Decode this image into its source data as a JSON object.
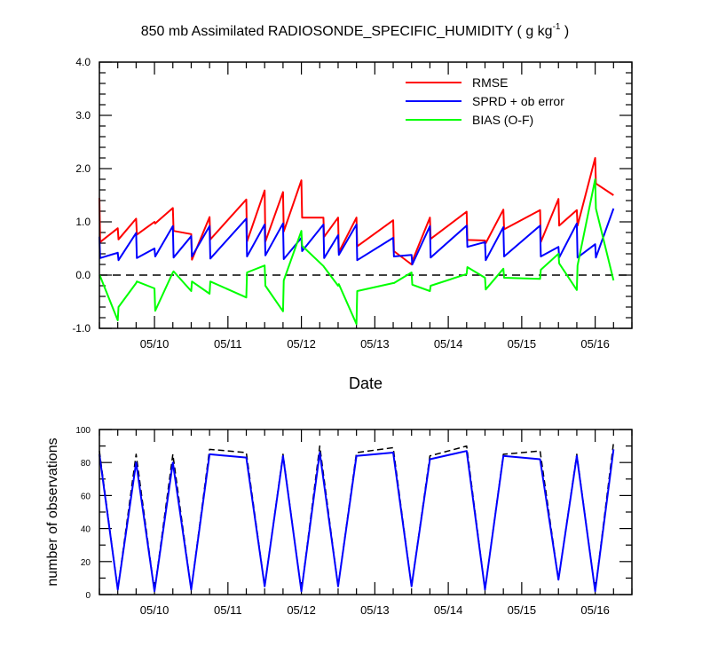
{
  "title_main": "850 mb Assimilated RADIOSONDE_SPECIFIC_HUMIDITY ( g kg",
  "title_sup": "-1",
  "title_end": " )",
  "chart_data": [
    {
      "type": "line",
      "xlabel": "Date",
      "ylabel": "",
      "ylim": [
        -1.0,
        4.0
      ],
      "yticks": [
        "4.0",
        "3.0",
        "2.0",
        "1.0",
        "0.0",
        "-1.0"
      ],
      "xlim": [
        9.25,
        16.5
      ],
      "xticks": [
        {
          "x": 10,
          "label": "05/10"
        },
        {
          "x": 11,
          "label": "05/11"
        },
        {
          "x": 12,
          "label": "05/12"
        },
        {
          "x": 13,
          "label": "05/13"
        },
        {
          "x": 14,
          "label": "05/14"
        },
        {
          "x": 15,
          "label": "05/15"
        },
        {
          "x": 16,
          "label": "05/16"
        }
      ],
      "reference_line": 0,
      "legend_position": "top-right",
      "series": [
        {
          "name": "RMSE",
          "color": "#ff0000",
          "points": [
            [
              9.25,
              1.45
            ],
            [
              9.26,
              0.62
            ],
            [
              9.5,
              0.88
            ],
            [
              9.51,
              0.67
            ],
            [
              9.75,
              1.06
            ],
            [
              9.76,
              0.76
            ],
            [
              10.0,
              1.0
            ],
            [
              10.01,
              0.97
            ],
            [
              10.25,
              1.26
            ],
            [
              10.26,
              0.83
            ],
            [
              10.5,
              0.77
            ],
            [
              10.51,
              0.29
            ],
            [
              10.75,
              1.09
            ],
            [
              10.76,
              0.67
            ],
            [
              11.25,
              1.42
            ],
            [
              11.26,
              0.63
            ],
            [
              11.5,
              1.59
            ],
            [
              11.51,
              0.63
            ],
            [
              11.75,
              1.56
            ],
            [
              11.76,
              0.82
            ],
            [
              12.0,
              1.78
            ],
            [
              12.01,
              1.08
            ],
            [
              12.3,
              1.08
            ],
            [
              12.31,
              0.72
            ],
            [
              12.5,
              1.08
            ],
            [
              12.51,
              0.43
            ],
            [
              12.75,
              1.08
            ],
            [
              12.76,
              0.54
            ],
            [
              13.25,
              1.03
            ],
            [
              13.26,
              0.45
            ],
            [
              13.5,
              0.2
            ],
            [
              13.51,
              0.26
            ],
            [
              13.75,
              1.08
            ],
            [
              13.76,
              0.68
            ],
            [
              14.25,
              1.19
            ],
            [
              14.26,
              0.66
            ],
            [
              14.5,
              0.65
            ],
            [
              14.51,
              0.6
            ],
            [
              14.75,
              1.23
            ],
            [
              14.76,
              0.86
            ],
            [
              15.25,
              1.22
            ],
            [
              15.26,
              0.62
            ],
            [
              15.5,
              1.43
            ],
            [
              15.51,
              0.93
            ],
            [
              15.75,
              1.22
            ],
            [
              15.76,
              0.93
            ],
            [
              16.0,
              2.2
            ],
            [
              16.01,
              1.72
            ],
            [
              16.25,
              1.5
            ]
          ]
        },
        {
          "name": "SPRD + ob error",
          "color": "#0000ff",
          "points": [
            [
              9.25,
              0.72
            ],
            [
              9.26,
              0.32
            ],
            [
              9.5,
              0.42
            ],
            [
              9.51,
              0.28
            ],
            [
              9.75,
              0.79
            ],
            [
              9.76,
              0.32
            ],
            [
              10.0,
              0.5
            ],
            [
              10.01,
              0.35
            ],
            [
              10.25,
              0.92
            ],
            [
              10.26,
              0.33
            ],
            [
              10.5,
              0.73
            ],
            [
              10.51,
              0.35
            ],
            [
              10.75,
              0.92
            ],
            [
              10.76,
              0.31
            ],
            [
              11.25,
              1.06
            ],
            [
              11.26,
              0.35
            ],
            [
              11.5,
              0.95
            ],
            [
              11.51,
              0.37
            ],
            [
              11.75,
              0.97
            ],
            [
              11.76,
              0.3
            ],
            [
              12.0,
              0.7
            ],
            [
              12.01,
              0.45
            ],
            [
              12.3,
              0.95
            ],
            [
              12.31,
              0.32
            ],
            [
              12.5,
              0.75
            ],
            [
              12.51,
              0.38
            ],
            [
              12.75,
              0.95
            ],
            [
              12.76,
              0.28
            ],
            [
              13.25,
              0.7
            ],
            [
              13.26,
              0.35
            ],
            [
              13.5,
              0.38
            ],
            [
              13.51,
              0.2
            ],
            [
              13.75,
              0.92
            ],
            [
              13.76,
              0.33
            ],
            [
              14.25,
              0.93
            ],
            [
              14.26,
              0.53
            ],
            [
              14.5,
              0.62
            ],
            [
              14.51,
              0.28
            ],
            [
              14.75,
              0.9
            ],
            [
              14.76,
              0.35
            ],
            [
              15.25,
              0.93
            ],
            [
              15.26,
              0.35
            ],
            [
              15.5,
              0.53
            ],
            [
              15.51,
              0.33
            ],
            [
              15.75,
              0.97
            ],
            [
              15.76,
              0.33
            ],
            [
              16.0,
              0.58
            ],
            [
              16.01,
              0.33
            ],
            [
              16.25,
              1.25
            ]
          ]
        },
        {
          "name": "BIAS (O-F)",
          "color": "#00ff00",
          "points": [
            [
              9.25,
              0.0
            ],
            [
              9.26,
              -0.02
            ],
            [
              9.5,
              -0.85
            ],
            [
              9.51,
              -0.6
            ],
            [
              9.75,
              -0.15
            ],
            [
              9.76,
              -0.12
            ],
            [
              10.0,
              -0.25
            ],
            [
              10.01,
              -0.67
            ],
            [
              10.25,
              0.05
            ],
            [
              10.26,
              0.07
            ],
            [
              10.5,
              -0.3
            ],
            [
              10.51,
              -0.12
            ],
            [
              10.75,
              -0.35
            ],
            [
              10.76,
              -0.12
            ],
            [
              11.25,
              -0.42
            ],
            [
              11.26,
              0.05
            ],
            [
              11.5,
              0.18
            ],
            [
              11.51,
              -0.2
            ],
            [
              11.75,
              -0.68
            ],
            [
              11.76,
              -0.1
            ],
            [
              12.0,
              0.83
            ],
            [
              12.01,
              0.55
            ],
            [
              12.3,
              0.17
            ],
            [
              12.31,
              0.15
            ],
            [
              12.5,
              -0.2
            ],
            [
              12.51,
              -0.17
            ],
            [
              12.75,
              -0.92
            ],
            [
              12.76,
              -0.3
            ],
            [
              13.25,
              -0.15
            ],
            [
              13.26,
              -0.15
            ],
            [
              13.5,
              0.05
            ],
            [
              13.51,
              -0.18
            ],
            [
              13.75,
              -0.3
            ],
            [
              13.76,
              -0.2
            ],
            [
              14.25,
              0.02
            ],
            [
              14.26,
              0.15
            ],
            [
              14.5,
              -0.05
            ],
            [
              14.51,
              -0.27
            ],
            [
              14.75,
              0.12
            ],
            [
              14.76,
              -0.05
            ],
            [
              15.25,
              -0.07
            ],
            [
              15.26,
              0.1
            ],
            [
              15.5,
              0.4
            ],
            [
              15.51,
              0.22
            ],
            [
              15.75,
              -0.28
            ],
            [
              15.76,
              0.18
            ],
            [
              16.0,
              1.8
            ],
            [
              16.01,
              1.25
            ],
            [
              16.25,
              -0.1
            ]
          ]
        }
      ]
    },
    {
      "type": "line",
      "xlabel": "",
      "ylabel": "number of observations",
      "ylim": [
        0,
        100
      ],
      "yticks": [
        "100",
        "80",
        "60",
        "40",
        "20",
        "0"
      ],
      "xlim": [
        9.25,
        16.5
      ],
      "xticks": [
        {
          "x": 10,
          "label": "05/10"
        },
        {
          "x": 11,
          "label": "05/11"
        },
        {
          "x": 12,
          "label": "05/12"
        },
        {
          "x": 13,
          "label": "05/13"
        },
        {
          "x": 14,
          "label": "05/14"
        },
        {
          "x": 15,
          "label": "05/15"
        },
        {
          "x": 16,
          "label": "05/16"
        }
      ],
      "series": [
        {
          "color": "#000000",
          "dashed": true,
          "points": [
            [
              9.25,
              87
            ],
            [
              9.5,
              3
            ],
            [
              9.75,
              85
            ],
            [
              10.0,
              2
            ],
            [
              10.25,
              85
            ],
            [
              10.5,
              3
            ],
            [
              10.75,
              88
            ],
            [
              11.25,
              86
            ],
            [
              11.5,
              5
            ],
            [
              11.75,
              85
            ],
            [
              12.0,
              2
            ],
            [
              12.25,
              90
            ],
            [
              12.5,
              5
            ],
            [
              12.75,
              86
            ],
            [
              13.25,
              89
            ],
            [
              13.5,
              5
            ],
            [
              13.75,
              84
            ],
            [
              14.25,
              90
            ],
            [
              14.5,
              3
            ],
            [
              14.75,
              85
            ],
            [
              15.25,
              87
            ],
            [
              15.5,
              9
            ],
            [
              15.75,
              85
            ],
            [
              16.0,
              2
            ],
            [
              16.25,
              92
            ]
          ]
        },
        {
          "color": "#0000ff",
          "points": [
            [
              9.25,
              85
            ],
            [
              9.5,
              3
            ],
            [
              9.75,
              80
            ],
            [
              10.0,
              2
            ],
            [
              10.25,
              80
            ],
            [
              10.5,
              3
            ],
            [
              10.75,
              85
            ],
            [
              11.25,
              83
            ],
            [
              11.5,
              5
            ],
            [
              11.75,
              84
            ],
            [
              12.0,
              2
            ],
            [
              12.25,
              86
            ],
            [
              12.5,
              5
            ],
            [
              12.75,
              84
            ],
            [
              13.25,
              86
            ],
            [
              13.5,
              5
            ],
            [
              13.75,
              82
            ],
            [
              14.25,
              87
            ],
            [
              14.5,
              3
            ],
            [
              14.75,
              84
            ],
            [
              15.25,
              82
            ],
            [
              15.5,
              9
            ],
            [
              15.75,
              84
            ],
            [
              16.0,
              2
            ],
            [
              16.25,
              88
            ]
          ]
        }
      ]
    }
  ]
}
